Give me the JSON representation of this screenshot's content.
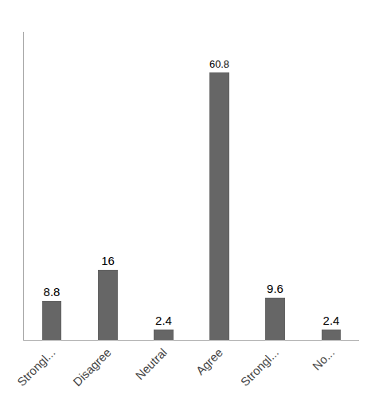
{
  "chart_data": {
    "type": "bar",
    "categories": [
      "Strongl...",
      "Disagree",
      "Neutral",
      "Agree",
      "Strongl...",
      "No..."
    ],
    "values": [
      8.8,
      16.0,
      2.4,
      60.8,
      9.6,
      2.4
    ],
    "color": "#666666",
    "ylim": [
      0,
      70
    ],
    "grid": false,
    "data_labels": true,
    "tick_labels": "x"
  }
}
